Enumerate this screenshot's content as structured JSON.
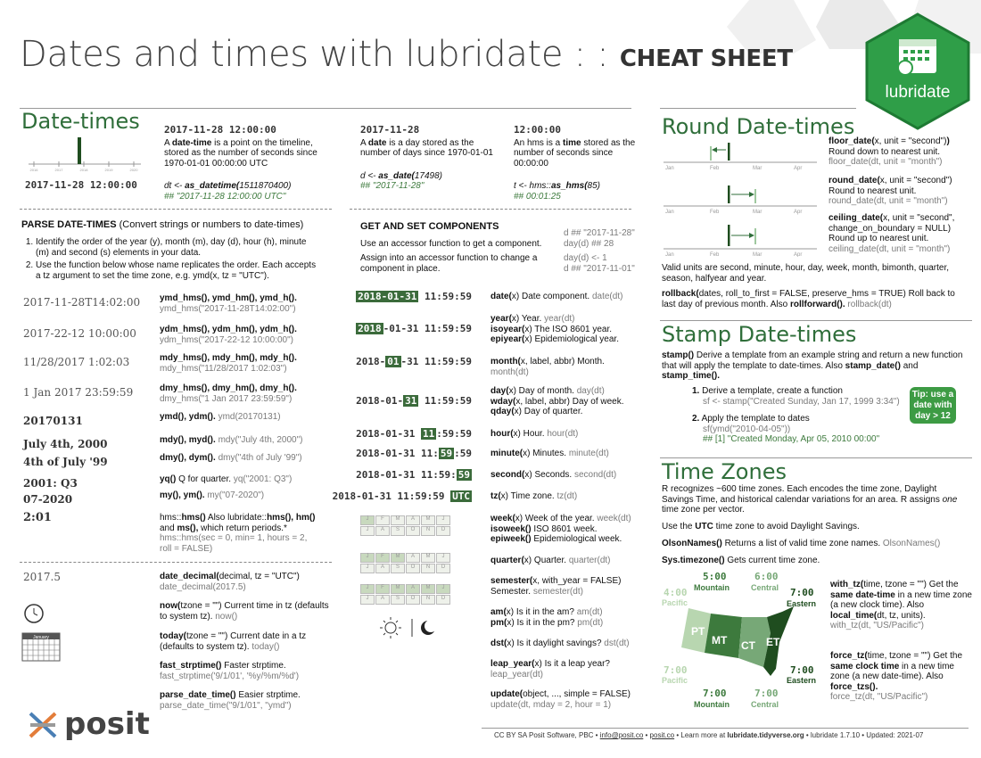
{
  "header": {
    "title": "Dates and times with lubridate : : ",
    "subtitle": "CHEAT SHEET",
    "logo": "lubridate"
  },
  "datetimes": {
    "heading": "Date-times",
    "timeline_label": "2017-11-28 12:00:00",
    "tick_labels": [
      "2016",
      "2017",
      "2018",
      "2019",
      "2020"
    ],
    "dt_head": "2017-11-28 12:00:00",
    "dt_desc_a": "A ",
    "dt_desc_b": "date-time",
    "dt_desc_c": " is a point on the timeline, stored as the number of seconds since 1970-01-01 00:00:00 UTC",
    "dt_code_a": "dt <- ",
    "dt_code_b": "as_datetime(",
    "dt_code_c": "1511870400)",
    "dt_out": "## \"2017-11-28 12:00:00 UTC\"",
    "d_head": "2017-11-28",
    "d_desc_a": "A ",
    "d_desc_b": "date",
    "d_desc_c": " is a day stored as the number of days since 1970-01-01",
    "d_code_a": "d <- ",
    "d_code_b": "as_date(",
    "d_code_c": "17498)",
    "d_out": "## \"2017-11-28\"",
    "t_head": "12:00:00",
    "t_desc_a": "An hms is a ",
    "t_desc_b": "time",
    "t_desc_c": " stored as the number of seconds since 00:00:00",
    "t_code_a": "t <- hms::",
    "t_code_b": "as_hms(",
    "t_code_c": "85)",
    "t_out": "## 00:01:25"
  },
  "parse": {
    "title": "PARSE DATE-TIMES",
    "title_sub": " (Convert strings or numbers to date-times)",
    "step1": "Identify the order of the year (y), month (m), day (d), hour (h), minute (m) and second (s) elements in your data.",
    "step2": "Use the function below whose name replicates the order. Each accepts a tz argument to set the time zone, e.g. ymd(x, tz = \"UTC\").",
    "rows": [
      {
        "ex": "2017-11-28T14:02:00",
        "fn": "ymd_hms(), ymd_hm(), ymd_h().",
        "code": "ymd_hms(\"2017-11-28T14:02:00\")"
      },
      {
        "ex": "2017-22-12 10:00:00",
        "fn": "ydm_hms(), ydm_hm(), ydm_h().",
        "code": "ydm_hms(\"2017-22-12 10:00:00\")"
      },
      {
        "ex": "11/28/2017 1:02:03",
        "fn": "mdy_hms(), mdy_hm(), mdy_h().",
        "code": "mdy_hms(\"11/28/2017 1:02:03\")"
      },
      {
        "ex": "1 Jan 2017 23:59:59",
        "fn": "dmy_hms(), dmy_hm(), dmy_h().",
        "code": "dmy_hms(\"1 Jan 2017 23:59:59\")"
      },
      {
        "ex": "20170131",
        "fn": "ymd(), ydm().",
        "code": "ymd(20170131)"
      },
      {
        "ex": "July 4th, 2000",
        "fn": "mdy(), myd().",
        "code": "mdy(\"July 4th, 2000\")"
      },
      {
        "ex": "4th of July '99",
        "fn": "dmy(), dym().",
        "code": "dmy(\"4th of July '99\")"
      },
      {
        "ex": "2001: Q3",
        "fn": "yq()",
        "fn_rest": " Q for quarter.",
        "code": "yq(\"2001: Q3\")"
      },
      {
        "ex": "07-2020",
        "fn": "my(), ym().",
        "code": "my(\"07-2020\")"
      }
    ],
    "hms_ex": "2:01",
    "hms_text_a": "hms::",
    "hms_text_b": "hms()",
    "hms_text_c": " Also lubridate::",
    "hms_text_d": "hms(),",
    "hms_text_e": "hm()",
    "hms_text_f": " and ",
    "hms_text_g": "ms(),",
    "hms_text_h": " which return periods.*",
    "hms_code": "hms::hms(sec = 0, min= 1, hours = 2, roll = FALSE)",
    "dec_ex": "2017.5",
    "dec_fn": "date_decimal(",
    "dec_args": "decimal, tz = \"UTC\")",
    "dec_code": "date_decimal(2017.5)",
    "now_fn": "now(",
    "now_args": "tzone = \"\")",
    "now_desc": " Current time in tz (defaults to system tz).",
    "now_code": "now()",
    "today_fn": "today(",
    "today_args": "tzone = \"\")",
    "today_desc": " Current date in a tz (defaults to system tz).",
    "today_code": "today()",
    "fast_fn": "fast_strptime()",
    "fast_desc": " Faster strptime.",
    "fast_code": "fast_strptime('9/1/01', '%y/%m/%d')",
    "pdt_fn": "parse_date_time()",
    "pdt_desc": " Easier strptime.",
    "pdt_code": "parse_date_time(\"9/1/01\", \"ymd\")",
    "cal_label": "January"
  },
  "getset": {
    "title": "GET AND SET COMPONENTS",
    "p1": "Use an accessor function to get a component.",
    "p2": "Assign into an accessor function to change a component in place.",
    "c1": "d ## \"2017-11-28\"",
    "c2": "day(d) ## 28",
    "c3": "day(d) <- 1",
    "c4": "d ## \"2017-11-01\"",
    "rows": [
      {
        "pre": "",
        "hl": "2018-01-31",
        "post": " 11:59:59",
        "fn": "date(",
        "fn2": "x)",
        "desc": " Date component. ",
        "code": "date(dt)"
      },
      {
        "pre": "",
        "hl": "2018",
        "post": "-01-31 11:59:59",
        "fn": "year(",
        "fn2": "x)",
        "desc": " Year. ",
        "code": "year(dt)",
        "fn_b": "isoyear(",
        "fn_b2": "x)",
        "desc_b": " The ISO 8601 year.",
        "fn_c": "epiyear(",
        "fn_c2": "x)",
        "desc_c": " Epidemiological year."
      },
      {
        "pre": "2018-",
        "hl": "01",
        "post": "-31 11:59:59",
        "fn": "month(",
        "fn2": "x, label, abbr)",
        "desc": " Month. ",
        "code": "month(dt)"
      },
      {
        "pre": "2018-01-",
        "hl": "31",
        "post": " 11:59:59",
        "fn": "day(",
        "fn2": "x)",
        "desc": " Day of month. ",
        "code": "day(dt)",
        "fn_b": "wday(",
        "fn_b2": "x, label, abbr)",
        "desc_b": " Day of week.",
        "fn_c": "qday(",
        "fn_c2": "x)",
        "desc_c": " Day of quarter."
      },
      {
        "pre": "2018-01-31 ",
        "hl": "11",
        "post": ":59:59",
        "fn": "hour(",
        "fn2": "x)",
        "desc": " Hour. ",
        "code": "hour(dt)"
      },
      {
        "pre": "2018-01-31 11:",
        "hl": "59",
        "post": ":59",
        "fn": "minute(",
        "fn2": "x)",
        "desc": " Minutes. ",
        "code": "minute(dt)"
      },
      {
        "pre": "2018-01-31 11:59:",
        "hl": "59",
        "post": "",
        "fn": "second(",
        "fn2": "x)",
        "desc": " Seconds. ",
        "code": "second(dt)"
      },
      {
        "pre": "2018-01-31 11:59:59 ",
        "hl": "UTC",
        "post": "",
        "fn": "tz(",
        "fn2": "x)",
        "desc": " Time zone. ",
        "code": "tz(dt)"
      }
    ],
    "week_fn": "week(",
    "week_a": "x)",
    "week_d": " Week of the year. ",
    "week_c": "week(dt)",
    "isoweek_fn": "isoweek()",
    "isoweek_d": " ISO 8601 week.",
    "epiweek_fn": "epiweek()",
    "epiweek_d": " Epidemiological week.",
    "quarter_fn": "quarter(",
    "quarter_a": "x)",
    "quarter_d": " Quarter. ",
    "quarter_c": "quarter(dt)",
    "semester_fn": "semester(",
    "semester_a": "x, with_year = FALSE)",
    "semester_d": "Semester. ",
    "semester_c": "semester(dt)",
    "am_fn": "am(",
    "am_a": "x)",
    "am_d": " Is it in the am? ",
    "am_c": "am(dt)",
    "pm_fn": "pm(",
    "pm_a": "x)",
    "pm_d": " Is it in the pm? ",
    "pm_c": "pm(dt)",
    "dst_fn": "dst(",
    "dst_a": "x)",
    "dst_d": " Is it daylight savings? ",
    "dst_c": "dst(dt)",
    "leap_fn": "leap_year(",
    "leap_a": "x)",
    "leap_d": " Is it a leap year?",
    "leap_c": "leap_year(dt)",
    "update_fn": "update(",
    "update_a": "object, ..., simple = FALSE)",
    "update_c": "update(dt, mday = 2, hour = 1)",
    "months": [
      "J",
      "F",
      "M",
      "A",
      "M",
      "J",
      "J",
      "A",
      "S",
      "O",
      "N",
      "D"
    ]
  },
  "round": {
    "heading": "Round Date-times",
    "axis": [
      "Jan",
      "Feb",
      "Mar",
      "Apr"
    ],
    "floor_fn": "floor_date(",
    "floor_a": "x, unit = \"second\")",
    "floor_d": "Round down to nearest unit.",
    "floor_c": "floor_date(dt, unit = \"month\")",
    "round_fn": "round_date(",
    "round_a": "x, unit = \"second\")",
    "round_d": "Round to nearest unit.",
    "round_c": "round_date(dt, unit = \"month\")",
    "ceil_fn": "ceiling_date(",
    "ceil_a": "x, unit = \"second\", change_on_boundary = NULL)",
    "ceil_d": "Round up to nearest unit.",
    "ceil_c": "ceiling_date(dt, unit = \"month\")",
    "units": "Valid units are second, minute, hour, day, week, month, bimonth, quarter, season, halfyear and year.",
    "rb_fn": "rollback(",
    "rb_a": "dates, roll_to_first = FALSE, preserve_hms = TRUE)",
    "rb_d": " Roll back to last day of previous month. Also ",
    "rb_fn2": "rollforward().",
    "rb_c": "rollback(dt)"
  },
  "stamp": {
    "heading": "Stamp Date-times",
    "intro_fn": "stamp()",
    "intro_d": " Derive a template from an example string and return a new function that will apply the template to date-times. Also ",
    "intro_f2": "stamp_date()",
    "intro_and": " and ",
    "intro_f3": "stamp_time().",
    "s1": "Derive a template, create a function",
    "s1c": "sf <- stamp(\"Created Sunday, Jan 17, 1999 3:34\")",
    "s2": "Apply the template to dates",
    "s2c": "sf(ymd(\"2010-04-05\"))",
    "s2o": "## [1] \"Created Monday, Apr 05, 2010 00:00\"",
    "tip": "Tip: use a date with day > 12"
  },
  "tz": {
    "heading": "Time Zones",
    "p1a": "R recognizes ~600 time zones. Each encodes the time zone, Daylight Savings Time, and historical calendar variations for an area. R assigns ",
    "p1b": "one",
    "p1c": " time zone per vector.",
    "p2a": "Use the ",
    "p2b": "UTC",
    "p2c": " time zone to avoid Daylight Savings.",
    "p3a": "OlsonNames()",
    "p3b": " Returns a list of valid time zone names. ",
    "p3c": "OlsonNames()",
    "p4a": "Sys.timezone()",
    "p4b": " Gets current time zone.",
    "map_top": [
      {
        "t": "5:00",
        "n": "Mountain"
      },
      {
        "t": "6:00",
        "n": "Central"
      },
      {
        "t": "4:00",
        "n": "Pacific"
      },
      {
        "t": "7:00",
        "n": "Eastern"
      }
    ],
    "map_bot": [
      {
        "t": "7:00",
        "n": "Pacific"
      },
      {
        "t": "7:00",
        "n": "Eastern"
      },
      {
        "t": "7:00",
        "n": "Mountain"
      },
      {
        "t": "7:00",
        "n": "Central"
      }
    ],
    "zones": [
      "PT",
      "MT",
      "CT",
      "ET"
    ],
    "wtz_fn": "with_tz(",
    "wtz_a": "time, tzone = \"\")",
    "wtz_d1": " Get the ",
    "wtz_b": "same date-time",
    "wtz_d2": " in a new time zone (a new clock time). Also ",
    "wtz_f2": "local_time(",
    "wtz_a2": "dt, tz, units).",
    "wtz_c": "with_tz(dt, \"US/Pacific\")",
    "ftz_fn": "force_tz(",
    "ftz_a": "time, tzone = \"\")",
    "ftz_d1": " Get the ",
    "ftz_b": "same clock time",
    "ftz_d2": " in a new time zone (a new date-time). Also ",
    "ftz_f2": "force_tzs().",
    "ftz_c": "force_tz(dt, \"US/Pacific\")"
  },
  "footer": {
    "brand": "posit",
    "text": "CC BY SA Posit Software, PBC • ",
    "email": "info@posit.co",
    "sep": " • ",
    "site": "posit.co",
    "rest": " • Learn more at ",
    "site2": "lubridate.tidyverse.org",
    "rest2": " • lubridate  1.7.10  •  Updated:  2021-07"
  },
  "colors": {
    "accent": "#3b6b3b",
    "heading": "#2f6e3a",
    "logo": "#2f9e48"
  }
}
